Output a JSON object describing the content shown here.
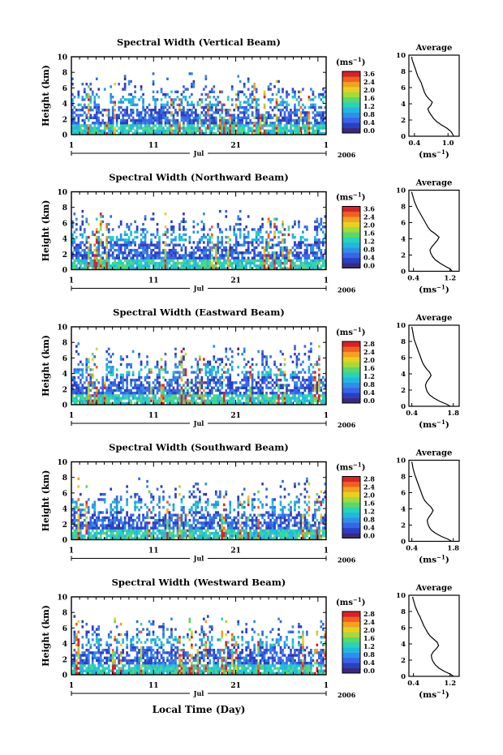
{
  "figure": {
    "xlabel": "Local Time (Day)"
  },
  "colors": {
    "ink": "#000000",
    "empty": "#ffffff",
    "colormap": [
      "#3b2a7a",
      "#2b3fc4",
      "#3a64e8",
      "#2f8fe8",
      "#21b8e0",
      "#27d4b8",
      "#5ad86a",
      "#a6d93a",
      "#e8d020",
      "#f4a020",
      "#f06020",
      "#d8202a"
    ]
  },
  "chart_data": [
    {
      "type": "heatmap",
      "title": "Spectral Width (Vertical Beam)",
      "ylabel": "Height (km)",
      "x_ticks": [
        "1",
        "11",
        "21",
        "1"
      ],
      "x_month": "Jul",
      "x_year": "2006",
      "ylim": [
        0,
        10
      ],
      "y_ticks": [
        "0",
        "2",
        "4",
        "6",
        "8",
        "10"
      ],
      "colorbar": {
        "unit_prefix": "(ms",
        "unit_exp": "−1",
        "unit_suffix": ")",
        "ticks": [
          "3.6",
          "2.4",
          "2.0",
          "1.6",
          "1.2",
          "0.8",
          "0.4",
          "0.0"
        ]
      },
      "average": {
        "title": "Average",
        "ylabel": "(ms",
        "ylabel_exp": "−1",
        "ylabel_suffix": ")",
        "x_ticks": [
          "0.4",
          "1.0"
        ],
        "xlim": [
          0.3,
          1.2
        ],
        "profile": [
          [
            1.1,
            0
          ],
          [
            1.08,
            0.3
          ],
          [
            1.05,
            0.6
          ],
          [
            0.98,
            1.0
          ],
          [
            0.88,
            1.4
          ],
          [
            0.8,
            1.8
          ],
          [
            0.74,
            2.2
          ],
          [
            0.7,
            2.6
          ],
          [
            0.66,
            3.0
          ],
          [
            0.64,
            3.4
          ],
          [
            0.69,
            3.8
          ],
          [
            0.72,
            4.2
          ],
          [
            0.66,
            4.6
          ],
          [
            0.61,
            5.0
          ],
          [
            0.58,
            5.4
          ],
          [
            0.56,
            5.8
          ],
          [
            0.54,
            6.2
          ],
          [
            0.52,
            6.6
          ],
          [
            0.49,
            7.0
          ],
          [
            0.46,
            7.4
          ],
          [
            0.44,
            7.8
          ],
          [
            0.42,
            8.2
          ],
          [
            0.4,
            8.6
          ],
          [
            0.38,
            9.0
          ],
          [
            0.36,
            9.4
          ],
          [
            0.35,
            9.8
          ]
        ]
      }
    },
    {
      "type": "heatmap",
      "title": "Spectral Width (Northward Beam)",
      "ylabel": "Height (km)",
      "x_ticks": [
        "1",
        "11",
        "21",
        "1"
      ],
      "x_month": "Jul",
      "x_year": "2006",
      "ylim": [
        0,
        10
      ],
      "y_ticks": [
        "0",
        "2",
        "4",
        "6",
        "8",
        "10"
      ],
      "colorbar": {
        "unit_prefix": "(ms",
        "unit_exp": "−1",
        "unit_suffix": ")",
        "ticks": [
          "3.6",
          "2.4",
          "2.0",
          "1.6",
          "1.2",
          "0.8",
          "0.4",
          "0.0"
        ]
      },
      "average": {
        "title": "Average",
        "ylabel": "(ms",
        "ylabel_exp": "−1",
        "ylabel_suffix": ")",
        "x_ticks": [
          "0.4",
          "1.2"
        ],
        "xlim": [
          0.3,
          1.4
        ],
        "profile": [
          [
            1.25,
            0
          ],
          [
            1.2,
            0.3
          ],
          [
            1.1,
            0.6
          ],
          [
            0.98,
            1.0
          ],
          [
            0.88,
            1.4
          ],
          [
            0.82,
            1.8
          ],
          [
            0.78,
            2.2
          ],
          [
            0.76,
            2.6
          ],
          [
            0.8,
            3.0
          ],
          [
            0.86,
            3.4
          ],
          [
            0.92,
            3.8
          ],
          [
            0.96,
            4.2
          ],
          [
            0.88,
            4.6
          ],
          [
            0.78,
            5.0
          ],
          [
            0.72,
            5.4
          ],
          [
            0.68,
            5.8
          ],
          [
            0.64,
            6.2
          ],
          [
            0.6,
            6.6
          ],
          [
            0.56,
            7.0
          ],
          [
            0.52,
            7.4
          ],
          [
            0.48,
            7.8
          ],
          [
            0.45,
            8.2
          ],
          [
            0.42,
            8.6
          ],
          [
            0.4,
            9.0
          ],
          [
            0.38,
            9.4
          ],
          [
            0.36,
            9.8
          ]
        ]
      }
    },
    {
      "type": "heatmap",
      "title": "Spectral Width (Eastward Beam)",
      "ylabel": "Height (km)",
      "x_ticks": [
        "1",
        "11",
        "21",
        "1"
      ],
      "x_month": "Jul",
      "x_year": "2006",
      "ylim": [
        0,
        10
      ],
      "y_ticks": [
        "0",
        "2",
        "4",
        "6",
        "8",
        "10"
      ],
      "colorbar": {
        "unit_prefix": "(ms",
        "unit_exp": "−1",
        "unit_suffix": ")",
        "ticks": [
          "2.8",
          "2.4",
          "2.0",
          "1.6",
          "1.2",
          "0.8",
          "0.4",
          "0.0"
        ]
      },
      "average": {
        "title": "Average",
        "ylabel": "(ms",
        "ylabel_exp": "−1",
        "ylabel_suffix": ")",
        "x_ticks": [
          "0.4",
          "1.8"
        ],
        "xlim": [
          0.3,
          2.0
        ],
        "profile": [
          [
            1.7,
            0
          ],
          [
            1.55,
            0.3
          ],
          [
            1.35,
            0.6
          ],
          [
            1.15,
            1.0
          ],
          [
            1.0,
            1.4
          ],
          [
            0.92,
            1.8
          ],
          [
            0.88,
            2.2
          ],
          [
            0.86,
            2.6
          ],
          [
            0.9,
            3.0
          ],
          [
            0.98,
            3.4
          ],
          [
            1.05,
            3.8
          ],
          [
            1.0,
            4.2
          ],
          [
            0.9,
            4.6
          ],
          [
            0.82,
            5.0
          ],
          [
            0.76,
            5.4
          ],
          [
            0.72,
            5.8
          ],
          [
            0.68,
            6.2
          ],
          [
            0.64,
            6.6
          ],
          [
            0.6,
            7.0
          ],
          [
            0.56,
            7.4
          ],
          [
            0.52,
            7.8
          ],
          [
            0.48,
            8.2
          ],
          [
            0.46,
            8.6
          ],
          [
            0.44,
            9.0
          ],
          [
            0.42,
            9.4
          ],
          [
            0.4,
            9.8
          ]
        ]
      }
    },
    {
      "type": "heatmap",
      "title": "Spectral Width (Southward Beam)",
      "ylabel": "Height (km)",
      "x_ticks": [
        "1",
        "11",
        "21",
        "1"
      ],
      "x_month": "Jul",
      "x_year": "2006",
      "ylim": [
        0,
        10
      ],
      "y_ticks": [
        "0",
        "2",
        "4",
        "6",
        "8",
        "10"
      ],
      "colorbar": {
        "unit_prefix": "(ms",
        "unit_exp": "−1",
        "unit_suffix": ")",
        "ticks": [
          "2.8",
          "2.4",
          "2.0",
          "1.6",
          "1.2",
          "0.8",
          "0.4",
          "0.0"
        ]
      },
      "average": {
        "title": "Average",
        "ylabel": "(ms",
        "ylabel_exp": "−1",
        "ylabel_suffix": ")",
        "x_ticks": [
          "0.4",
          "1.8"
        ],
        "xlim": [
          0.3,
          2.0
        ],
        "profile": [
          [
            1.75,
            0
          ],
          [
            1.6,
            0.3
          ],
          [
            1.4,
            0.6
          ],
          [
            1.2,
            1.0
          ],
          [
            1.05,
            1.4
          ],
          [
            0.98,
            1.8
          ],
          [
            0.94,
            2.2
          ],
          [
            0.92,
            2.6
          ],
          [
            0.98,
            3.0
          ],
          [
            1.06,
            3.4
          ],
          [
            1.12,
            3.8
          ],
          [
            1.05,
            4.2
          ],
          [
            0.94,
            4.6
          ],
          [
            0.84,
            5.0
          ],
          [
            0.78,
            5.4
          ],
          [
            0.74,
            5.8
          ],
          [
            0.7,
            6.2
          ],
          [
            0.66,
            6.6
          ],
          [
            0.62,
            7.0
          ],
          [
            0.58,
            7.4
          ],
          [
            0.54,
            7.8
          ],
          [
            0.5,
            8.2
          ],
          [
            0.47,
            8.6
          ],
          [
            0.44,
            9.0
          ],
          [
            0.42,
            9.4
          ],
          [
            0.4,
            9.8
          ]
        ]
      }
    },
    {
      "type": "heatmap",
      "title": "Spectral Width (Westward Beam)",
      "ylabel": "Height (km)",
      "x_ticks": [
        "1",
        "11",
        "21",
        "1"
      ],
      "x_month": "Jul",
      "x_year": "2006",
      "ylim": [
        0,
        10
      ],
      "y_ticks": [
        "0",
        "2",
        "4",
        "6",
        "8",
        "10"
      ],
      "colorbar": {
        "unit_prefix": "(ms",
        "unit_exp": "−1",
        "unit_suffix": ")",
        "ticks": [
          "2.8",
          "2.4",
          "2.0",
          "1.6",
          "1.2",
          "0.8",
          "0.4",
          "0.0"
        ]
      },
      "average": {
        "title": "Average",
        "ylabel": "(ms",
        "ylabel_exp": "−1",
        "ylabel_suffix": ")",
        "x_ticks": [
          "0.4",
          "1.2"
        ],
        "xlim": [
          0.3,
          1.4
        ],
        "profile": [
          [
            1.28,
            0
          ],
          [
            1.2,
            0.3
          ],
          [
            1.08,
            0.6
          ],
          [
            0.96,
            1.0
          ],
          [
            0.88,
            1.4
          ],
          [
            0.83,
            1.8
          ],
          [
            0.8,
            2.2
          ],
          [
            0.79,
            2.6
          ],
          [
            0.83,
            3.0
          ],
          [
            0.9,
            3.4
          ],
          [
            0.95,
            3.8
          ],
          [
            0.92,
            4.2
          ],
          [
            0.84,
            4.6
          ],
          [
            0.76,
            5.0
          ],
          [
            0.71,
            5.4
          ],
          [
            0.67,
            5.8
          ],
          [
            0.63,
            6.2
          ],
          [
            0.6,
            6.6
          ],
          [
            0.57,
            7.0
          ],
          [
            0.54,
            7.4
          ],
          [
            0.5,
            7.8
          ],
          [
            0.47,
            8.2
          ],
          [
            0.44,
            8.6
          ],
          [
            0.42,
            9.0
          ],
          [
            0.4,
            9.4
          ],
          [
            0.38,
            9.8
          ]
        ]
      }
    }
  ]
}
